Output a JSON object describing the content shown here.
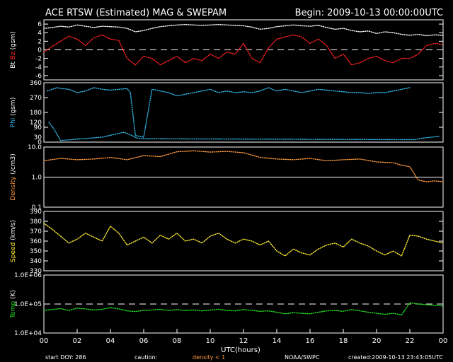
{
  "header": {
    "title": "ACE RTSW (Estimated) MAG & SWEPAM",
    "begin": "Begin: 2009-10-13 00:00:00UTC"
  },
  "footer": {
    "start_doy": "start DOY: 286",
    "caution": "caution:",
    "density_note": "density < 1",
    "source": "NOAA/SWPC",
    "created": "created:2009-10-13 23:43:05UTC"
  },
  "colors": {
    "bt": "#ffffff",
    "bz": "#ff2020",
    "phi": "#33b5e5",
    "density": "#ff9a40",
    "speed": "#ffee33",
    "temp": "#22dd22",
    "axis": "#ffffff",
    "background": "#000000"
  },
  "chart_data": {
    "type": "line",
    "x_axis": {
      "label": "UTC(hours)",
      "range": [
        0,
        24
      ],
      "tick_labels": [
        "00",
        "02",
        "04",
        "06",
        "08",
        "10",
        "12",
        "14",
        "16",
        "18",
        "20",
        "22",
        "00"
      ]
    },
    "panels": [
      {
        "id": "bt_bz",
        "ylabel_parts": [
          {
            "text": "Bt",
            "color": "#ffffff"
          },
          {
            "text": "Bz",
            "color": "#ff2020"
          },
          {
            "text": "(gsm)",
            "color": "#ffffff"
          }
        ],
        "scale": "linear",
        "ylim": [
          -7,
          7
        ],
        "ticks": [
          6,
          4,
          2,
          0,
          -2,
          -4,
          -6
        ],
        "tick_labels": [
          "6",
          "4",
          "2",
          "0",
          "-2",
          "-4",
          "-6"
        ],
        "dashed_line": 0,
        "series": [
          {
            "name": "Bt",
            "color": "#ffffff",
            "x": [
              0,
              0.5,
              1,
              1.5,
              2,
              2.5,
              3,
              3.5,
              4,
              4.5,
              5,
              5.5,
              6,
              6.5,
              7,
              7.5,
              8,
              8.5,
              9,
              9.5,
              10,
              10.5,
              11,
              11.5,
              12,
              12.5,
              13,
              13.5,
              14,
              14.5,
              15,
              15.5,
              16,
              16.5,
              17,
              17.5,
              18,
              18.5,
              19,
              19.5,
              20,
              20.5,
              21,
              21.5,
              22,
              22.5,
              23,
              23.5,
              24
            ],
            "y": [
              5.0,
              5.2,
              5.5,
              5.3,
              5.8,
              5.5,
              5.2,
              5.5,
              5.4,
              5.3,
              5.0,
              4.2,
              4.5,
              5.0,
              5.4,
              5.6,
              5.8,
              5.9,
              5.8,
              5.7,
              5.8,
              5.9,
              5.8,
              5.7,
              5.6,
              5.3,
              4.8,
              5.0,
              5.4,
              5.6,
              5.8,
              5.6,
              5.5,
              5.7,
              5.2,
              4.8,
              5.0,
              4.5,
              4.2,
              4.4,
              3.8,
              4.2,
              4.0,
              3.6,
              3.4,
              3.6,
              3.3,
              3.5,
              3.4
            ]
          },
          {
            "name": "Bz",
            "color": "#ff2020",
            "x": [
              0,
              0.5,
              1,
              1.5,
              2,
              2.5,
              3,
              3.5,
              4,
              4.5,
              5,
              5.5,
              6,
              6.5,
              7,
              7.5,
              8,
              8.5,
              9,
              9.5,
              10,
              10.5,
              11,
              11.5,
              12,
              12.5,
              13,
              13.5,
              14,
              14.5,
              15,
              15.5,
              16,
              16.5,
              17,
              17.5,
              18,
              18.5,
              19,
              19.5,
              20,
              20.5,
              21,
              21.5,
              22,
              22.5,
              23,
              23.5,
              24
            ],
            "y": [
              -0.5,
              0.8,
              2.0,
              3.2,
              2.5,
              1.0,
              2.8,
              3.5,
              2.5,
              2.2,
              -2.0,
              -3.5,
              -1.5,
              -2.0,
              -3.5,
              -2.5,
              -1.5,
              -3.0,
              -2.0,
              -2.5,
              -1.0,
              -2.0,
              -0.5,
              -1.0,
              1.5,
              -2.0,
              -3.0,
              0.5,
              2.5,
              3.0,
              3.5,
              3.0,
              1.5,
              2.5,
              1.0,
              -2.0,
              -1.0,
              -3.5,
              -3.0,
              -2.0,
              -1.5,
              -2.5,
              -3.0,
              -2.0,
              -2.0,
              -1.0,
              1.0,
              1.5,
              1.2
            ]
          }
        ]
      },
      {
        "id": "phi",
        "ylabel_parts": [
          {
            "text": "Phi",
            "color": "#33b5e5"
          },
          {
            "text": "(gsm)",
            "color": "#ffffff"
          }
        ],
        "scale": "linear",
        "ylim": [
          0,
          360
        ],
        "ticks": [
          360,
          270,
          180,
          90,
          0
        ],
        "tick_labels": [
          "360",
          "270",
          "180",
          "90",
          "0"
        ],
        "extra_tick_labels": [
          {
            "value": 120,
            "label": "120"
          },
          {
            "value": 30,
            "label": "30"
          }
        ],
        "series": [
          {
            "name": "Phi",
            "color": "#33b5e5",
            "x": [
              0.2,
              0.5,
              0.8,
              1,
              1.5,
              2,
              2.5,
              3,
              3.5,
              4,
              4.5,
              5,
              5.2,
              5.5,
              6,
              6.5,
              7,
              7.5,
              8,
              8.5,
              9,
              9.5,
              10,
              10.5,
              11,
              11.5,
              12,
              12.5,
              13,
              13.5,
              14,
              14.5,
              15,
              15.5,
              16,
              16.5,
              17,
              17.5,
              18,
              18.5,
              19,
              19.5,
              20,
              20.5,
              21,
              21.5,
              22
            ],
            "y": [
              310,
              320,
              330,
              325,
              320,
              300,
              310,
              330,
              320,
              315,
              320,
              325,
              300,
              40,
              30,
              320,
              310,
              300,
              280,
              290,
              300,
              310,
              320,
              300,
              310,
              300,
              305,
              300,
              310,
              330,
              310,
              320,
              310,
              300,
              310,
              320,
              315,
              310,
              305,
              300,
              300,
              295,
              300,
              300,
              310,
              320,
              330
            ]
          },
          {
            "name": "Phi",
            "color": "#33b5e5",
            "x": [
              0.3,
              0.6,
              1.0,
              3.5,
              4.8,
              5.3,
              5.6,
              6.1,
              22.3,
              22.8,
              23.3,
              23.8
            ],
            "y": [
              120,
              80,
              10,
              30,
              60,
              40,
              25,
              20,
              15,
              25,
              30,
              35
            ]
          }
        ]
      },
      {
        "id": "density",
        "ylabel_parts": [
          {
            "text": "Density",
            "color": "#ff9a40"
          },
          {
            "text": "(/cm3)",
            "color": "#ffffff"
          }
        ],
        "scale": "log",
        "ylim": [
          0.1,
          10.0
        ],
        "ticks": [
          10.0,
          1.0,
          0.1
        ],
        "tick_labels": [
          "10.0",
          "1.0",
          "0.1"
        ],
        "solid_line": 1.0,
        "series": [
          {
            "name": "Density",
            "color": "#ff9a40",
            "x": [
              0,
              1,
              2,
              3,
              4,
              5,
              6,
              7,
              8,
              9,
              10,
              11,
              12,
              13,
              14,
              15,
              16,
              17,
              18,
              19,
              20,
              21,
              21.5,
              22,
              22.5,
              23,
              23.5,
              24
            ],
            "y": [
              3.5,
              4.2,
              3.8,
              4.0,
              4.5,
              3.8,
              5.2,
              4.8,
              7.0,
              7.5,
              6.8,
              7.2,
              6.5,
              4.5,
              4.0,
              3.8,
              4.2,
              3.5,
              3.8,
              4.0,
              3.2,
              3.0,
              2.5,
              2.2,
              0.8,
              0.7,
              0.75,
              0.7
            ]
          }
        ]
      },
      {
        "id": "speed",
        "ylabel_parts": [
          {
            "text": "Speed",
            "color": "#ffee33"
          },
          {
            "text": "(km/s)",
            "color": "#ffffff"
          }
        ],
        "scale": "linear",
        "ylim": [
          330,
          390
        ],
        "ticks": [
          390,
          380,
          370,
          360,
          350,
          340,
          330
        ],
        "tick_labels": [
          "390",
          "380",
          "370",
          "360",
          "350",
          "340",
          "330"
        ],
        "series": [
          {
            "name": "Speed",
            "color": "#ffee33",
            "x": [
              0,
              0.5,
              1,
              1.5,
              2,
              2.5,
              3,
              3.5,
              4,
              4.5,
              5,
              5.5,
              6,
              6.5,
              7,
              7.5,
              8,
              8.5,
              9,
              9.5,
              10,
              10.5,
              11,
              11.5,
              12,
              12.5,
              13,
              13.5,
              14,
              14.5,
              15,
              15.5,
              16,
              16.5,
              17,
              17.5,
              18,
              18.5,
              19,
              19.5,
              20,
              20.5,
              21,
              21.5,
              22,
              22.5,
              23,
              23.5,
              24
            ],
            "y": [
              378,
              372,
              365,
              358,
              362,
              368,
              364,
              360,
              375,
              368,
              356,
              360,
              364,
              358,
              366,
              362,
              368,
              360,
              362,
              358,
              365,
              368,
              362,
              358,
              362,
              360,
              356,
              360,
              350,
              345,
              352,
              348,
              346,
              352,
              356,
              358,
              354,
              362,
              358,
              355,
              350,
              346,
              350,
              345,
              366,
              365,
              362,
              360,
              358
            ]
          }
        ]
      },
      {
        "id": "temp",
        "ylabel_parts": [
          {
            "text": "Temp",
            "color": "#22dd22"
          },
          {
            "text": "(K)",
            "color": "#ffffff"
          }
        ],
        "scale": "log",
        "ylim": [
          10000,
          1000000
        ],
        "ticks": [
          1000000,
          100000,
          10000
        ],
        "tick_labels": [
          "1.0E+06",
          "1.0E+05",
          "1.0E+04"
        ],
        "dashed_line": 100000,
        "series": [
          {
            "name": "Temp",
            "color": "#22dd22",
            "x": [
              0,
              0.5,
              1,
              1.5,
              2,
              2.5,
              3,
              3.5,
              4,
              4.5,
              5,
              5.5,
              6,
              6.5,
              7,
              7.5,
              8,
              8.5,
              9,
              9.5,
              10,
              10.5,
              11,
              11.5,
              12,
              12.5,
              13,
              13.5,
              14,
              14.5,
              15,
              15.5,
              16,
              16.5,
              17,
              17.5,
              18,
              18.5,
              19,
              19.5,
              20,
              20.5,
              21,
              21.5,
              22,
              22.5,
              23,
              23.5,
              24
            ],
            "y": [
              60000,
              65000,
              70000,
              60000,
              72000,
              68000,
              62000,
              66000,
              75000,
              68000,
              58000,
              55000,
              60000,
              62000,
              66000,
              60000,
              64000,
              60000,
              62000,
              58000,
              62000,
              66000,
              60000,
              58000,
              64000,
              60000,
              56000,
              58000,
              52000,
              46000,
              50000,
              48000,
              46000,
              52000,
              58000,
              60000,
              56000,
              64000,
              58000,
              52000,
              48000,
              44000,
              48000,
              42000,
              110000,
              100000,
              95000,
              90000,
              85000
            ]
          }
        ]
      }
    ]
  }
}
